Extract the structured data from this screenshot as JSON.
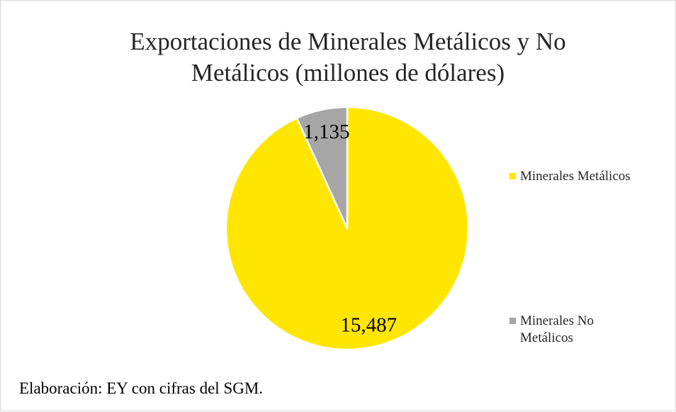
{
  "chart_data": {
    "type": "pie",
    "title": "Exportaciones de Minerales Metálicos y No Metálicos (millones de dólares)",
    "categories": [
      "Minerales Metálicos",
      "Minerales No Metálicos"
    ],
    "values": [
      15487,
      1135
    ],
    "value_labels": [
      "15,487",
      "1,135"
    ],
    "colors": [
      "#FFE600",
      "#A6A6A6"
    ],
    "legend": "right",
    "note": "Elaboración: EY con cifras del SGM."
  }
}
